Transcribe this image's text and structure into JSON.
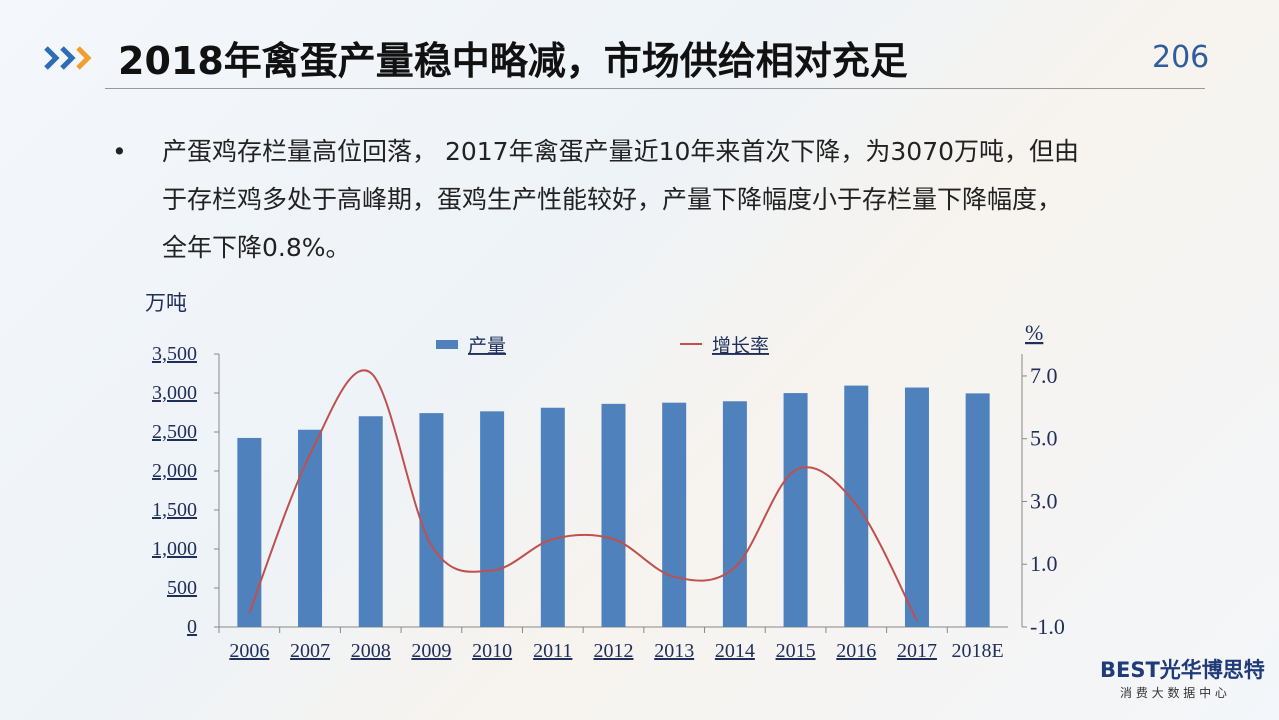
{
  "header": {
    "title": "2018年禽蛋产量稳中略减，市场供给相对充足",
    "page_number": "206"
  },
  "bullet": {
    "marker": "•",
    "lines": [
      "产蛋鸡存栏量高位回落， 2017年禽蛋产量近10年来首次下降，为3070万吨，但由",
      "于存栏鸡多处于高峰期，蛋鸡生产性能较好，产量下降幅度小于存栏量下降幅度，",
      "全年下降0.8%。"
    ]
  },
  "chart_data": {
    "type": "bar_line",
    "y_label": "万吨",
    "y2_label": "%",
    "categories": [
      "2006",
      "2007",
      "2008",
      "2009",
      "2010",
      "2011",
      "2012",
      "2013",
      "2014",
      "2015",
      "2016",
      "2017",
      "2018E"
    ],
    "series": [
      {
        "name": "产量",
        "type": "bar",
        "color": "#4f81bd",
        "values": [
          2424,
          2529,
          2702,
          2742,
          2765,
          2811,
          2861,
          2876,
          2894,
          2999,
          3095,
          3070,
          2995
        ]
      },
      {
        "name": "增长率",
        "type": "line",
        "axis": "y2",
        "color": "#c0504d",
        "values": [
          -0.55,
          4.5,
          7.1,
          1.6,
          0.8,
          1.8,
          1.8,
          0.6,
          0.9,
          4.0,
          2.9,
          -0.8,
          null
        ]
      }
    ],
    "ylim": [
      0,
      3500
    ],
    "yticks": [
      0,
      500,
      {
        "value": 1000,
        "label": "1,000"
      },
      {
        "value": 1500,
        "label": "1,500"
      },
      {
        "value": 2000,
        "label": "2,000"
      },
      {
        "value": 2500,
        "label": "2,500"
      },
      {
        "value": 3000,
        "label": "3,000"
      },
      {
        "value": 3500,
        "label": "3,500"
      }
    ],
    "y2lim": [
      -1,
      7.7
    ],
    "y2ticks": [
      {
        "value": -1,
        "label": "-1.0"
      },
      {
        "value": 1,
        "label": "1.0"
      },
      {
        "value": 3,
        "label": "3.0"
      },
      {
        "value": 5,
        "label": "5.0"
      },
      {
        "value": 7,
        "label": "7.0"
      }
    ],
    "legend": "top"
  },
  "footer": {
    "logo": "BEST光华博思特",
    "subtitle": "消 费 大 数 据 中 心"
  }
}
